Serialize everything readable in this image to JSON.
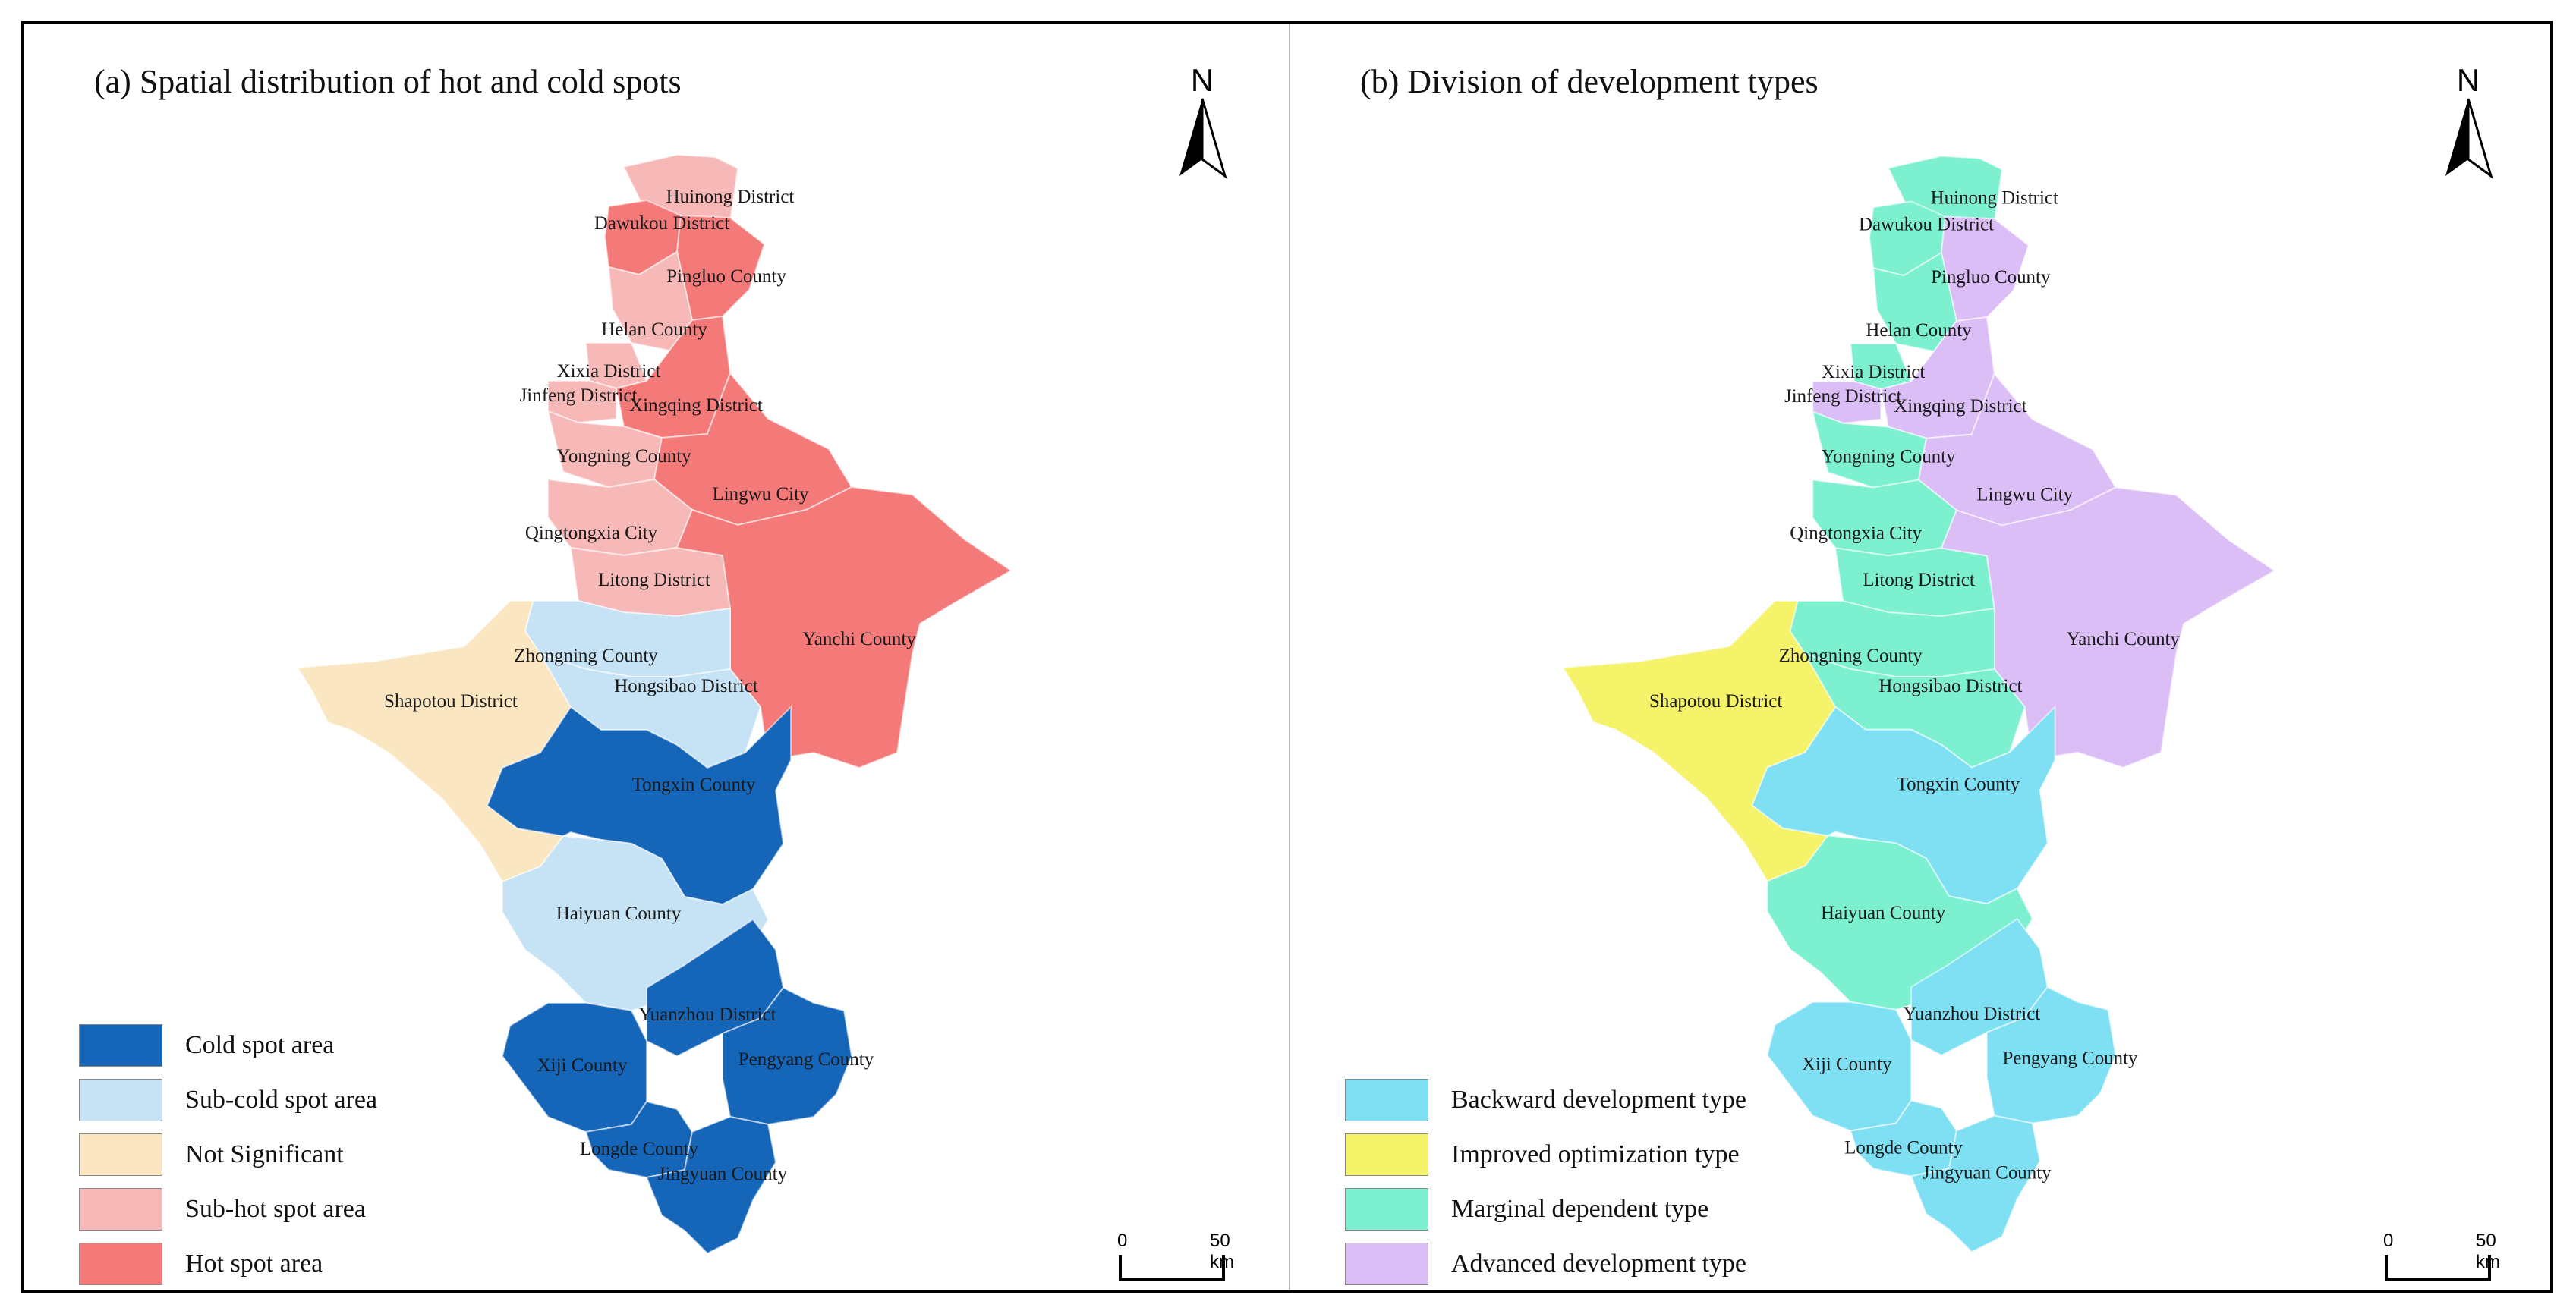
{
  "panels": [
    {
      "title": "(a) Spatial distribution of hot and cold spots",
      "legend": [
        {
          "label": "Cold spot area",
          "color": "#1565b8"
        },
        {
          "label": "Sub-cold spot area",
          "color": "#c6e2f5"
        },
        {
          "label": "Not Significant",
          "color": "#fbe6c2"
        },
        {
          "label": "Sub-hot spot area",
          "color": "#f7b8b8"
        },
        {
          "label": "Hot spot area",
          "color": "#f47a7a"
        }
      ],
      "north_label": "N",
      "scale": {
        "zero": "0",
        "value": "50 km"
      }
    },
    {
      "title": "(b) Division of development types",
      "legend": [
        {
          "label": "Backward development type",
          "color": "#7fe0f4"
        },
        {
          "label": "Improved optimization type",
          "color": "#f4f36a"
        },
        {
          "label": "Marginal dependent type",
          "color": "#7df0d0"
        },
        {
          "label": "Advanced development type",
          "color": "#dcbef7"
        }
      ],
      "north_label": "N",
      "scale": {
        "zero": "0",
        "value": "50 km"
      }
    }
  ],
  "regions": [
    {
      "name": "Huinong District",
      "a": "Sub-hot spot area",
      "b": "Marginal dependent type"
    },
    {
      "name": "Dawukou District",
      "a": "Hot spot area",
      "b": "Marginal dependent type"
    },
    {
      "name": "Pingluo County",
      "a": "Hot spot area",
      "b": "Advanced development type"
    },
    {
      "name": "Helan County",
      "a": "Sub-hot spot area",
      "b": "Marginal dependent type"
    },
    {
      "name": "Xixia District",
      "a": "Sub-hot spot area",
      "b": "Marginal dependent type"
    },
    {
      "name": "Jinfeng District",
      "a": "Sub-hot spot area",
      "b": "Advanced development type"
    },
    {
      "name": "Xingqing District",
      "a": "Hot spot area",
      "b": "Advanced development type"
    },
    {
      "name": "Yongning County",
      "a": "Sub-hot spot area",
      "b": "Marginal dependent type"
    },
    {
      "name": "Lingwu City",
      "a": "Hot spot area",
      "b": "Advanced development type"
    },
    {
      "name": "Qingtongxia City",
      "a": "Sub-hot spot area",
      "b": "Marginal dependent type"
    },
    {
      "name": "Litong District",
      "a": "Sub-hot spot area",
      "b": "Marginal dependent type"
    },
    {
      "name": "Yanchi County",
      "a": "Hot spot area",
      "b": "Advanced development type"
    },
    {
      "name": "Zhongning County",
      "a": "Sub-cold spot area",
      "b": "Marginal dependent type"
    },
    {
      "name": "Shapotou District",
      "a": "Not Significant",
      "b": "Improved optimization type"
    },
    {
      "name": "Hongsibao District",
      "a": "Sub-cold spot area",
      "b": "Marginal dependent type"
    },
    {
      "name": "Tongxin County",
      "a": "Cold spot area",
      "b": "Backward development type"
    },
    {
      "name": "Haiyuan County",
      "a": "Sub-cold spot area",
      "b": "Marginal dependent type"
    },
    {
      "name": "Yuanzhou District",
      "a": "Cold spot area",
      "b": "Backward development type"
    },
    {
      "name": "Xiji County",
      "a": "Cold spot area",
      "b": "Backward development type"
    },
    {
      "name": "Pengyang County",
      "a": "Cold spot area",
      "b": "Backward development type"
    },
    {
      "name": "Longde County",
      "a": "Cold spot area",
      "b": "Backward development type"
    },
    {
      "name": "Jingyuan County",
      "a": "Cold spot area",
      "b": "Backward development type"
    }
  ]
}
